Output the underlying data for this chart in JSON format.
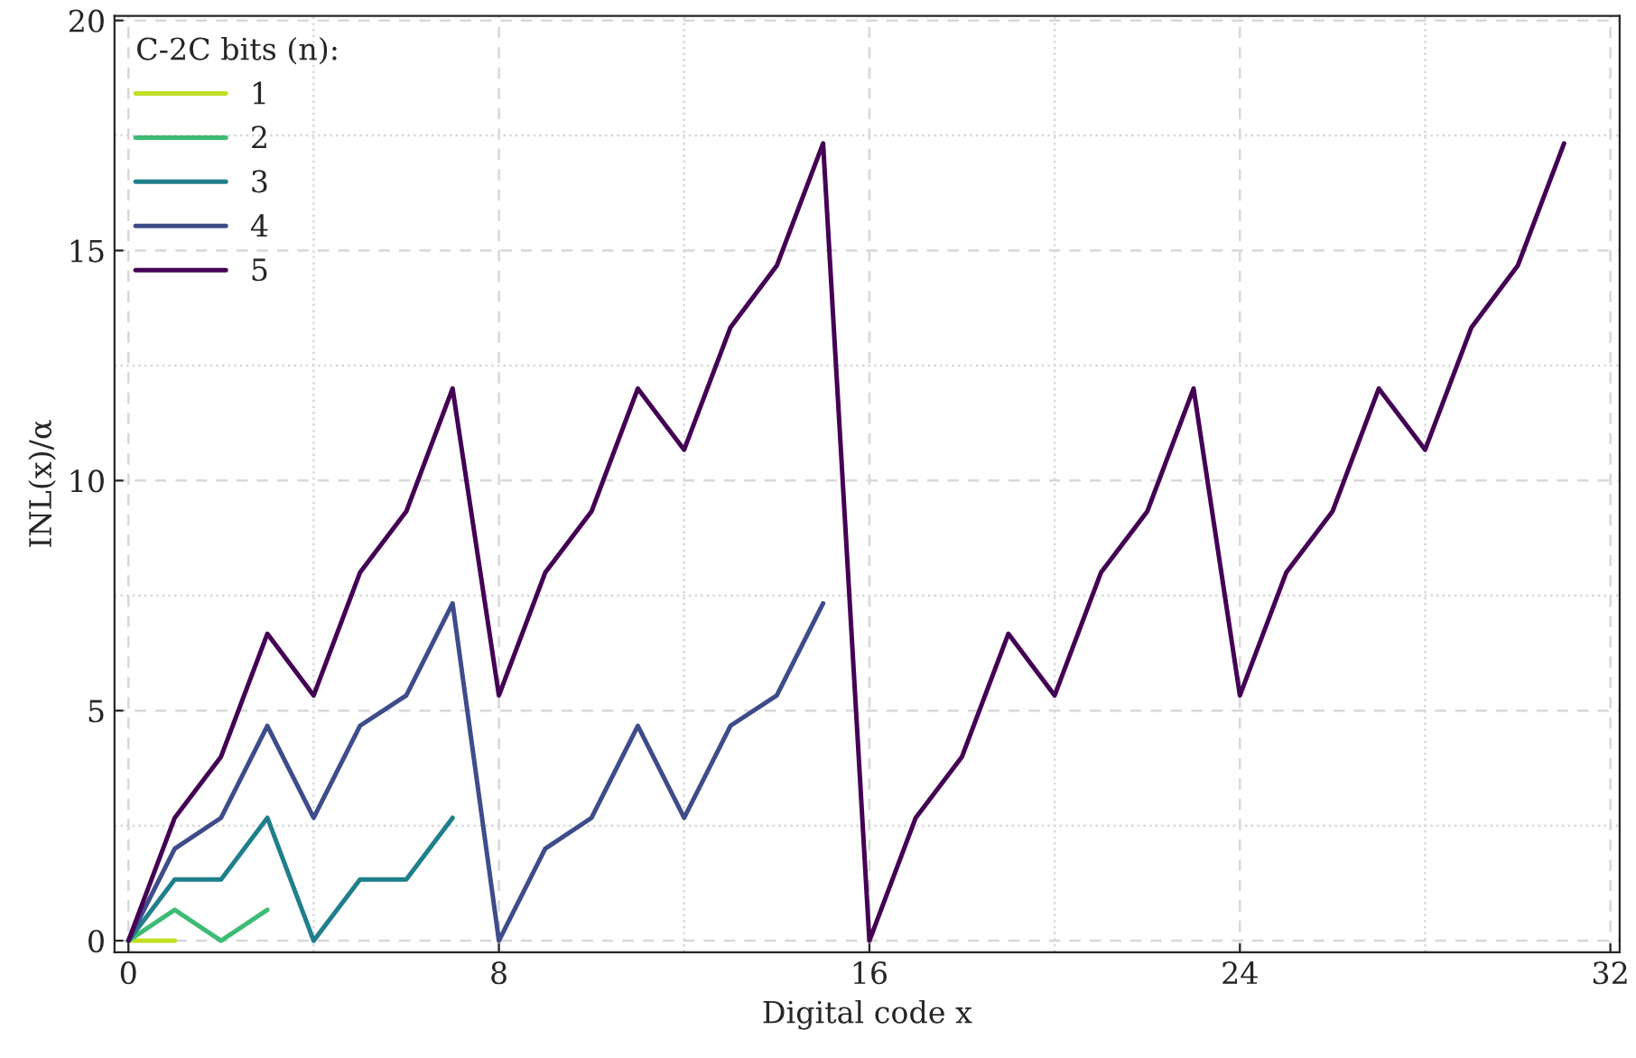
{
  "chart_data": {
    "type": "line",
    "xlabel": "Digital code x",
    "ylabel": "INL(x)/α",
    "legend_title": "C-2C bits (n):",
    "xlim": [
      -0.3,
      32.2
    ],
    "ylim": [
      -0.25,
      20.1
    ],
    "xticks": [
      0,
      {
        "value": 4,
        "label": null
      },
      8,
      {
        "value": 12,
        "label": null
      },
      16,
      {
        "value": 20,
        "label": null
      },
      24,
      {
        "value": 28,
        "label": null
      },
      32
    ],
    "yticks": [
      0,
      {
        "value": 2.5,
        "label": null
      },
      5,
      {
        "value": 7.5,
        "label": null
      },
      10,
      {
        "value": 12.5,
        "label": null
      },
      15,
      {
        "value": 17.5,
        "label": null
      },
      20
    ],
    "grid": true,
    "legend": "top left",
    "marker": "none",
    "line_style": "solid",
    "series": [
      {
        "name": "1",
        "color": "#c2df23",
        "x": [
          0,
          1
        ],
        "values": [
          0,
          0
        ]
      },
      {
        "name": "2",
        "color": "#3dbc74",
        "x": [
          0,
          1,
          2,
          3
        ],
        "values": [
          0,
          0.67,
          0,
          0.67
        ]
      },
      {
        "name": "3",
        "color": "#1f7f8b",
        "x": [
          0,
          1,
          2,
          3,
          4,
          5,
          6,
          7
        ],
        "values": [
          0,
          1.33,
          1.33,
          2.67,
          0,
          1.33,
          1.33,
          2.67
        ]
      },
      {
        "name": "4",
        "color": "#3e4c8a",
        "x": [
          0,
          1,
          2,
          3,
          4,
          5,
          6,
          7,
          8,
          9,
          10,
          11,
          12,
          13,
          14,
          15
        ],
        "values": [
          0,
          2,
          2.67,
          4.67,
          2.67,
          4.67,
          5.33,
          7.33,
          0,
          2,
          2.67,
          4.67,
          2.67,
          4.67,
          5.33,
          7.33
        ]
      },
      {
        "name": "5",
        "color": "#440154",
        "x": [
          0,
          1,
          2,
          3,
          4,
          5,
          6,
          7,
          8,
          9,
          10,
          11,
          12,
          13,
          14,
          15,
          16,
          17,
          18,
          19,
          20,
          21,
          22,
          23,
          24,
          25,
          26,
          27,
          28,
          29,
          30,
          31
        ],
        "values": [
          0,
          2.67,
          4,
          6.67,
          5.33,
          8,
          9.33,
          12,
          5.33,
          8,
          9.33,
          12,
          10.67,
          13.33,
          14.67,
          17.33,
          0,
          2.67,
          4,
          6.67,
          5.33,
          8,
          9.33,
          12,
          5.33,
          8,
          9.33,
          12,
          10.67,
          13.33,
          14.67,
          17.33
        ]
      }
    ]
  }
}
